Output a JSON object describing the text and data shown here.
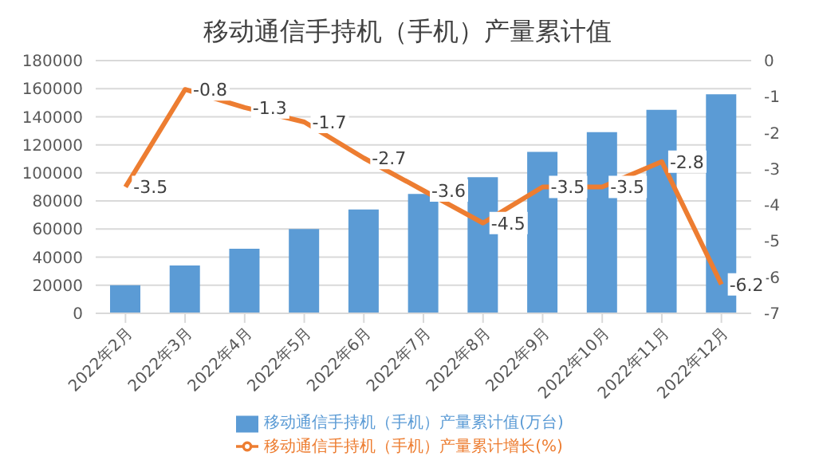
{
  "chart_data": {
    "type": "bar",
    "title": "移动通信手持机（手机）产量累计值",
    "categories": [
      "2022年2月",
      "2022年3月",
      "2022年4月",
      "2022年5月",
      "2022年6月",
      "2022年7月",
      "2022年8月",
      "2022年9月",
      "2022年10月",
      "2022年11月",
      "2022年12月"
    ],
    "series": [
      {
        "name": "移动通信手持机（手机）产量累计值(万台)",
        "color": "#5b9bd5",
        "values": [
          20000,
          34000,
          46000,
          60000,
          74000,
          85000,
          97000,
          115000,
          129000,
          145000,
          156000
        ]
      },
      {
        "name": "移动通信手持机（手机）产量累计增长(%)",
        "type": "line",
        "axis": "y2",
        "color": "#ed7d31",
        "values": [
          -3.5,
          -0.8,
          -1.3,
          -1.7,
          -2.7,
          -3.6,
          -4.5,
          -3.5,
          -3.5,
          -2.8,
          -6.2
        ],
        "value_labels": [
          "-3.5",
          "-0.8",
          "-1.3",
          "-1.7",
          "-2.7",
          "-3.6",
          "-4.5",
          "-3.5",
          "-3.5",
          "-2.8",
          "-6.2"
        ]
      }
    ],
    "ylim": [
      0,
      180000
    ],
    "yticks": [
      0,
      20000,
      40000,
      60000,
      80000,
      100000,
      120000,
      140000,
      160000,
      180000
    ],
    "y2lim": [
      -7,
      0
    ],
    "y2ticks": [
      0,
      -1,
      -2,
      -3,
      -4,
      -5,
      -6,
      -7
    ],
    "grid": "y",
    "legend": "bottom",
    "marker": "none",
    "line_style": "solid"
  }
}
